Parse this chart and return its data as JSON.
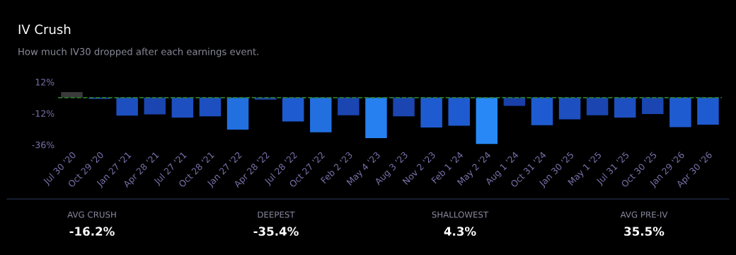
{
  "chart_data": {
    "type": "bar",
    "title": "IV Crush",
    "subtitle": "How much IV30 dropped after each earnings event.",
    "categories": [
      "Jul 30 '20",
      "Oct 29 '20",
      "Jan 27 '21",
      "Apr 28 '21",
      "Jul 27 '21",
      "Oct 28 '21",
      "Jan 27 '22",
      "Apr 28 '22",
      "Jul 28 '22",
      "Oct 27 '22",
      "Feb 2 '23",
      "May 4 '23",
      "Aug 3 '23",
      "Nov 2 '23",
      "Feb 1 '24",
      "May 2 '24",
      "Aug 1 '24",
      "Oct 31 '24",
      "Jan 30 '25",
      "May 1 '25",
      "Jul 31 '25",
      "Oct 30 '25",
      "Jan 29 '26",
      "Apr 30 '26"
    ],
    "values": [
      4.3,
      -1,
      -13.7,
      -12.8,
      -15.2,
      -14.3,
      -24.5,
      -1.6,
      -18.2,
      -26.5,
      -13.5,
      -31,
      -14.3,
      -22.8,
      -21.5,
      -35.4,
      -6.3,
      -21.1,
      -16.6,
      -13.5,
      -15.2,
      -12.5,
      -22.6,
      -20.6
    ],
    "colors": [
      "#3a3a3a",
      "#1a3fa8",
      "#1d4fc0",
      "#1b45b0",
      "#1d4fc0",
      "#1d4fc0",
      "#2270e0",
      "#1a3fa8",
      "#1f5bd0",
      "#2270e0",
      "#1b45b0",
      "#2680f0",
      "#1b45b0",
      "#1f5bd0",
      "#1f5bd0",
      "#2888f5",
      "#1a3fa8",
      "#1f5bd0",
      "#1d4fc0",
      "#1b45b0",
      "#1d4fc0",
      "#1b45b0",
      "#1f5bd0",
      "#1f5bd0"
    ],
    "ylim": [
      -38,
      12
    ],
    "yticks": [
      {
        "value": 12,
        "label": "12%"
      },
      {
        "value": -12,
        "label": "-12%"
      },
      {
        "value": -36,
        "label": "-36%"
      }
    ],
    "grid": false,
    "legend": false,
    "ref_lines": [
      {
        "axis": "y",
        "value": 0,
        "label": null,
        "color": "#2a7a2a",
        "line_style": "dashed"
      }
    ],
    "annotations": [
      "AVG CRUSH",
      "-16.2%",
      "DEEPEST",
      "-35.4%",
      "SHALLOWEST",
      "4.3%",
      "AVG PRE-IV",
      "35.5%"
    ]
  }
}
